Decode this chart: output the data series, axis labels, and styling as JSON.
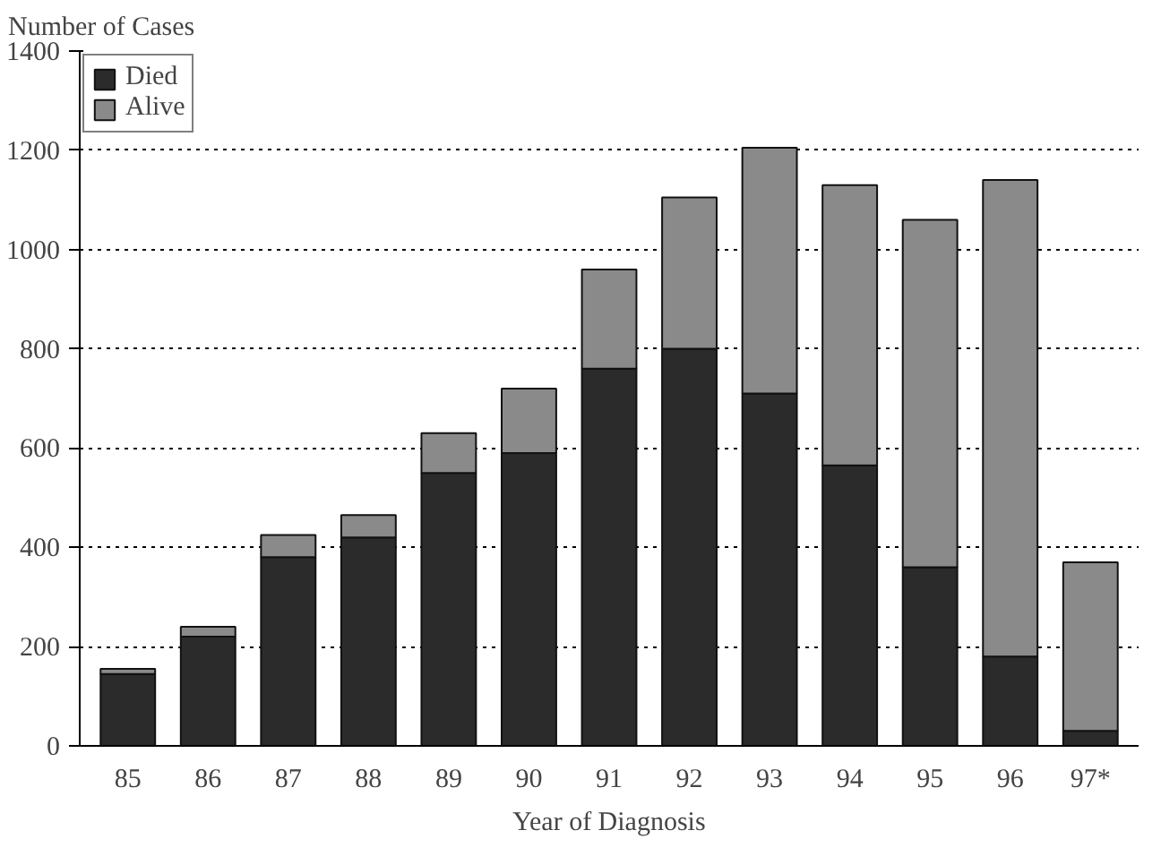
{
  "chart_data": {
    "type": "bar",
    "stacked": true,
    "xlabel": "Year of Diagnosis",
    "ylabel": "Number of Cases",
    "categories": [
      "85",
      "86",
      "87",
      "88",
      "89",
      "90",
      "91",
      "92",
      "93",
      "94",
      "95",
      "96",
      "97*"
    ],
    "series": [
      {
        "name": "Died",
        "color": "#2b2b2b",
        "values": [
          145,
          220,
          380,
          420,
          550,
          590,
          760,
          800,
          710,
          565,
          360,
          180,
          30
        ]
      },
      {
        "name": "Alive",
        "color": "#8a8a8a",
        "values": [
          10,
          20,
          45,
          45,
          80,
          130,
          200,
          305,
          495,
          565,
          700,
          960,
          340
        ]
      }
    ],
    "ylim": [
      0,
      1400
    ],
    "yticks": [
      0,
      200,
      400,
      600,
      800,
      1000,
      1200,
      1400
    ],
    "grid": "y",
    "legend": "top left"
  }
}
